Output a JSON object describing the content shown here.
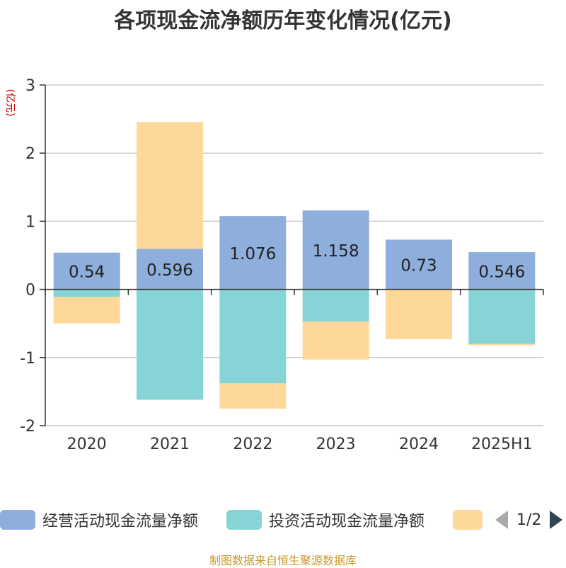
{
  "title": "各项现金流净额历年变化情况(亿元)",
  "source": "制图数据来自恒生聚源数据库",
  "legend": {
    "items": [
      {
        "label": "经营活动现金流量净额",
        "color": "#8eaedb"
      },
      {
        "label": "投资活动现金流量净额",
        "color": "#86d4d6"
      },
      {
        "label": "",
        "color": "#fed898"
      }
    ],
    "page_indicator": "1/2"
  },
  "chart_data": {
    "type": "bar",
    "stacked": true,
    "title": "各项现金流净额历年变化情况(亿元)",
    "ylabel": "(亿元)",
    "ylim": [
      -2,
      3
    ],
    "yticks": [
      -2,
      -1,
      0,
      1,
      2,
      3
    ],
    "categories": [
      "2020",
      "2021",
      "2022",
      "2023",
      "2024",
      "2025H1"
    ],
    "series": [
      {
        "name": "经营活动现金流量净额",
        "color": "#8eaedb",
        "values": [
          0.54,
          0.596,
          1.076,
          1.158,
          0.73,
          0.546
        ],
        "labels": [
          "0.54",
          "0.596",
          "1.076",
          "1.158",
          "0.73",
          "0.546"
        ]
      },
      {
        "name": "投资活动现金流量净额",
        "color": "#86d4d6",
        "values": [
          -0.11,
          -1.62,
          -1.38,
          -0.47,
          0,
          -0.8
        ]
      },
      {
        "name": "",
        "color": "#fed898",
        "values": [
          -0.39,
          1.86,
          -0.37,
          -0.56,
          -0.73,
          -0.02
        ]
      }
    ]
  }
}
